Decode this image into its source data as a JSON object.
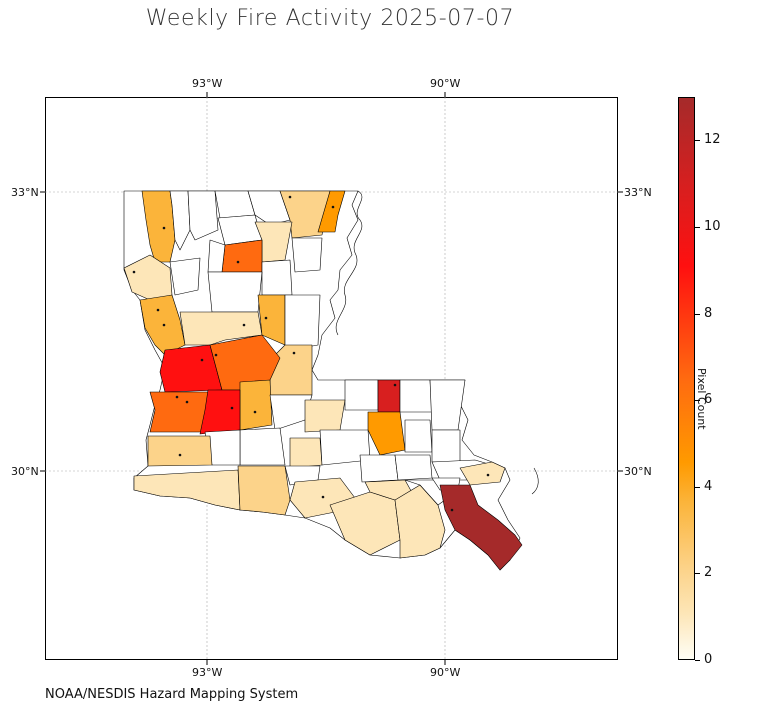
{
  "title": "Weekly Fire Activity 2025-07-07",
  "credit": "NOAA/NESDIS Hazard Mapping System",
  "colorbar": {
    "label": "Pixel Count",
    "ticks": [
      "0",
      "2",
      "4",
      "6",
      "8",
      "10",
      "12"
    ],
    "min": 0,
    "max": 13,
    "colors": [
      "#fffef5",
      "#fde6b8",
      "#fcd38a",
      "#fbb43a",
      "#ff9a00",
      "#ff6a10",
      "#ff1010",
      "#d81f1f",
      "#a52a2a"
    ]
  },
  "graticule": {
    "lon_labels": [
      "93°W",
      "90°W"
    ],
    "lat_labels": [
      "33°N",
      "30°N"
    ]
  },
  "parishes_by_pixel_count": {
    "high_12_13": 1,
    "high_9_10": 2,
    "mid_6_8": 4,
    "mid_4_5": 4,
    "low_1_3": 17
  }
}
